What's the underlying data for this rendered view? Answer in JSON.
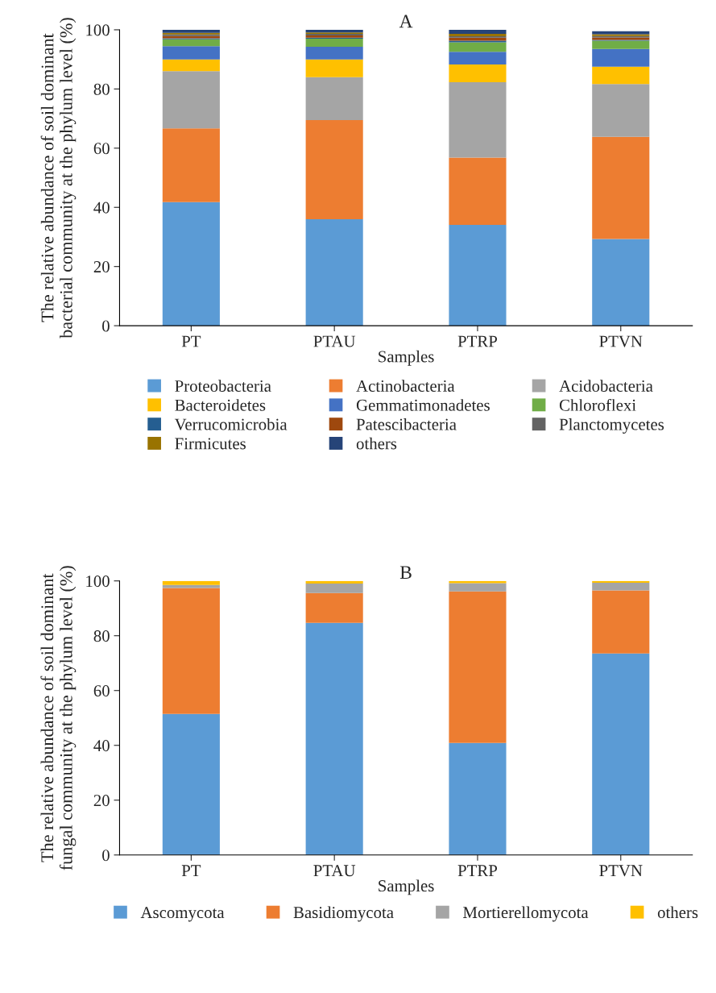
{
  "chart_data": [
    {
      "type": "bar",
      "stacked": true,
      "title": "A",
      "xlabel": "Samples",
      "ylabel": "The relative abundance of soil dominant\nbacterial community at the phylum level (%)",
      "categories": [
        "PT",
        "PTAU",
        "PTRP",
        "PTVN"
      ],
      "ylim": [
        0,
        100
      ],
      "yticks": [
        0,
        20,
        40,
        60,
        80,
        100
      ],
      "legend": "bottom",
      "grid": false,
      "series": [
        {
          "name": "Proteobacteria",
          "color": "#5b9bd5",
          "values": [
            41.8,
            36.0,
            34.1,
            29.3
          ]
        },
        {
          "name": "Actinobacteria",
          "color": "#ed7d31",
          "values": [
            24.9,
            33.5,
            22.7,
            34.5
          ]
        },
        {
          "name": "Acidobacteria",
          "color": "#a5a5a5",
          "values": [
            19.3,
            14.5,
            25.5,
            17.9
          ]
        },
        {
          "name": "Bacteroidetes",
          "color": "#ffc000",
          "values": [
            4.0,
            6.0,
            6.0,
            5.8
          ]
        },
        {
          "name": "Gemmatimonadetes",
          "color": "#4472c4",
          "values": [
            4.5,
            4.3,
            4.3,
            6.0
          ]
        },
        {
          "name": "Chloroflexi",
          "color": "#70ad47",
          "values": [
            2.3,
            2.7,
            3.2,
            2.8
          ]
        },
        {
          "name": "Verrucomicrobia",
          "color": "#255e91",
          "values": [
            0.3,
            0.3,
            0.5,
            0.3
          ]
        },
        {
          "name": "Patescibacteria",
          "color": "#9e480e",
          "values": [
            0.8,
            0.8,
            1.0,
            0.8
          ]
        },
        {
          "name": "Planctomycetes",
          "color": "#636363",
          "values": [
            0.5,
            0.5,
            0.5,
            0.5
          ]
        },
        {
          "name": "Firmicutes",
          "color": "#997300",
          "values": [
            0.6,
            0.5,
            0.8,
            0.6
          ]
        },
        {
          "name": "others",
          "color": "#264478",
          "values": [
            1.0,
            0.9,
            1.4,
            1.0
          ]
        }
      ]
    },
    {
      "type": "bar",
      "stacked": true,
      "title": "B",
      "xlabel": "Samples",
      "ylabel": "The relative abundance of soil dominant\nfungal community at the phylum level (%)",
      "categories": [
        "PT",
        "PTAU",
        "PTRP",
        "PTVN"
      ],
      "ylim": [
        0,
        100
      ],
      "yticks": [
        0,
        20,
        40,
        60,
        80,
        100
      ],
      "legend": "bottom",
      "grid": false,
      "series": [
        {
          "name": "Ascomycota",
          "color": "#5b9bd5",
          "values": [
            51.5,
            84.7,
            40.9,
            73.5
          ]
        },
        {
          "name": "Basidiomycota",
          "color": "#ed7d31",
          "values": [
            45.9,
            10.9,
            55.3,
            23.0
          ]
        },
        {
          "name": "Mortierellomycota",
          "color": "#a5a5a5",
          "values": [
            1.1,
            3.4,
            3.0,
            2.8
          ]
        },
        {
          "name": "others",
          "color": "#ffc000",
          "values": [
            1.5,
            1.0,
            0.8,
            0.7
          ]
        }
      ]
    }
  ]
}
